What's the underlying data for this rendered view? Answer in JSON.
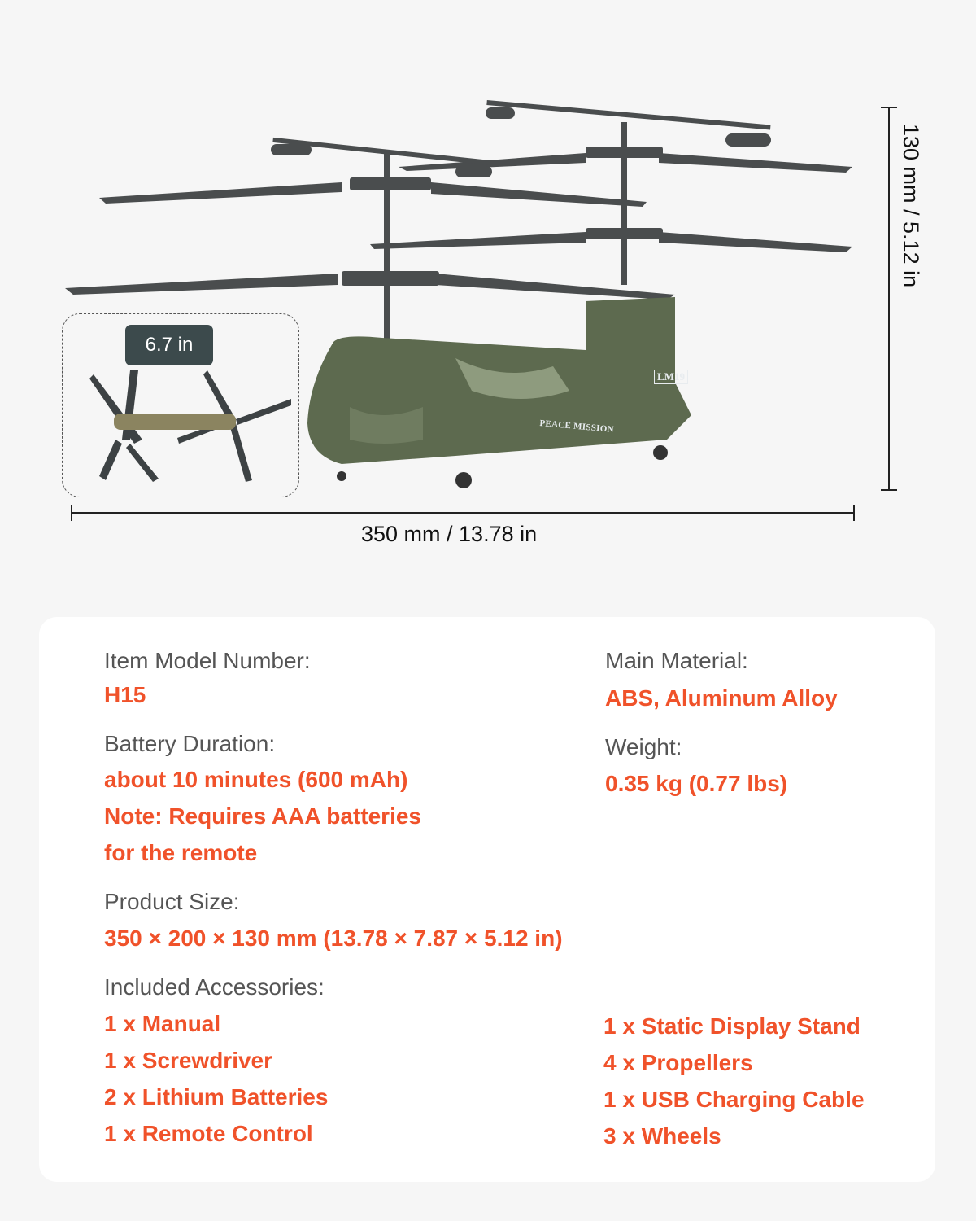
{
  "dimensions": {
    "length": "350 mm / 13.78 in",
    "height": "130 mm / 5.12 in",
    "phone_size": "6.7 in"
  },
  "helicopter_markings": [
    "LM19",
    "PEACE MISSION"
  ],
  "colors": {
    "accent": "#f0522a",
    "label": "#555555",
    "background": "#f6f6f6",
    "card": "#ffffff"
  },
  "specs": {
    "model": {
      "label": "Item Model Number:",
      "value": "H15"
    },
    "material": {
      "label": "Main Material:",
      "value": "ABS, Aluminum Alloy"
    },
    "battery": {
      "label": "Battery Duration:",
      "value": "about 10 minutes (600 mAh)",
      "note1": "Note: Requires AAA batteries",
      "note2": "for the remote"
    },
    "weight": {
      "label": "Weight:",
      "value": "0.35 kg (0.77 lbs)"
    },
    "size": {
      "label": "Product Size:",
      "value": "350 × 200 × 130 mm (13.78 × 7.87 × 5.12 in)"
    },
    "accessories": {
      "label": "Included Accessories:",
      "left": [
        "1 x Manual",
        "1 x Screwdriver",
        "2 x Lithium Batteries",
        "1 x Remote Control"
      ],
      "right": [
        "1 x Static Display Stand",
        "4 x Propellers",
        "1 x USB Charging Cable",
        "3 x Wheels"
      ]
    }
  }
}
